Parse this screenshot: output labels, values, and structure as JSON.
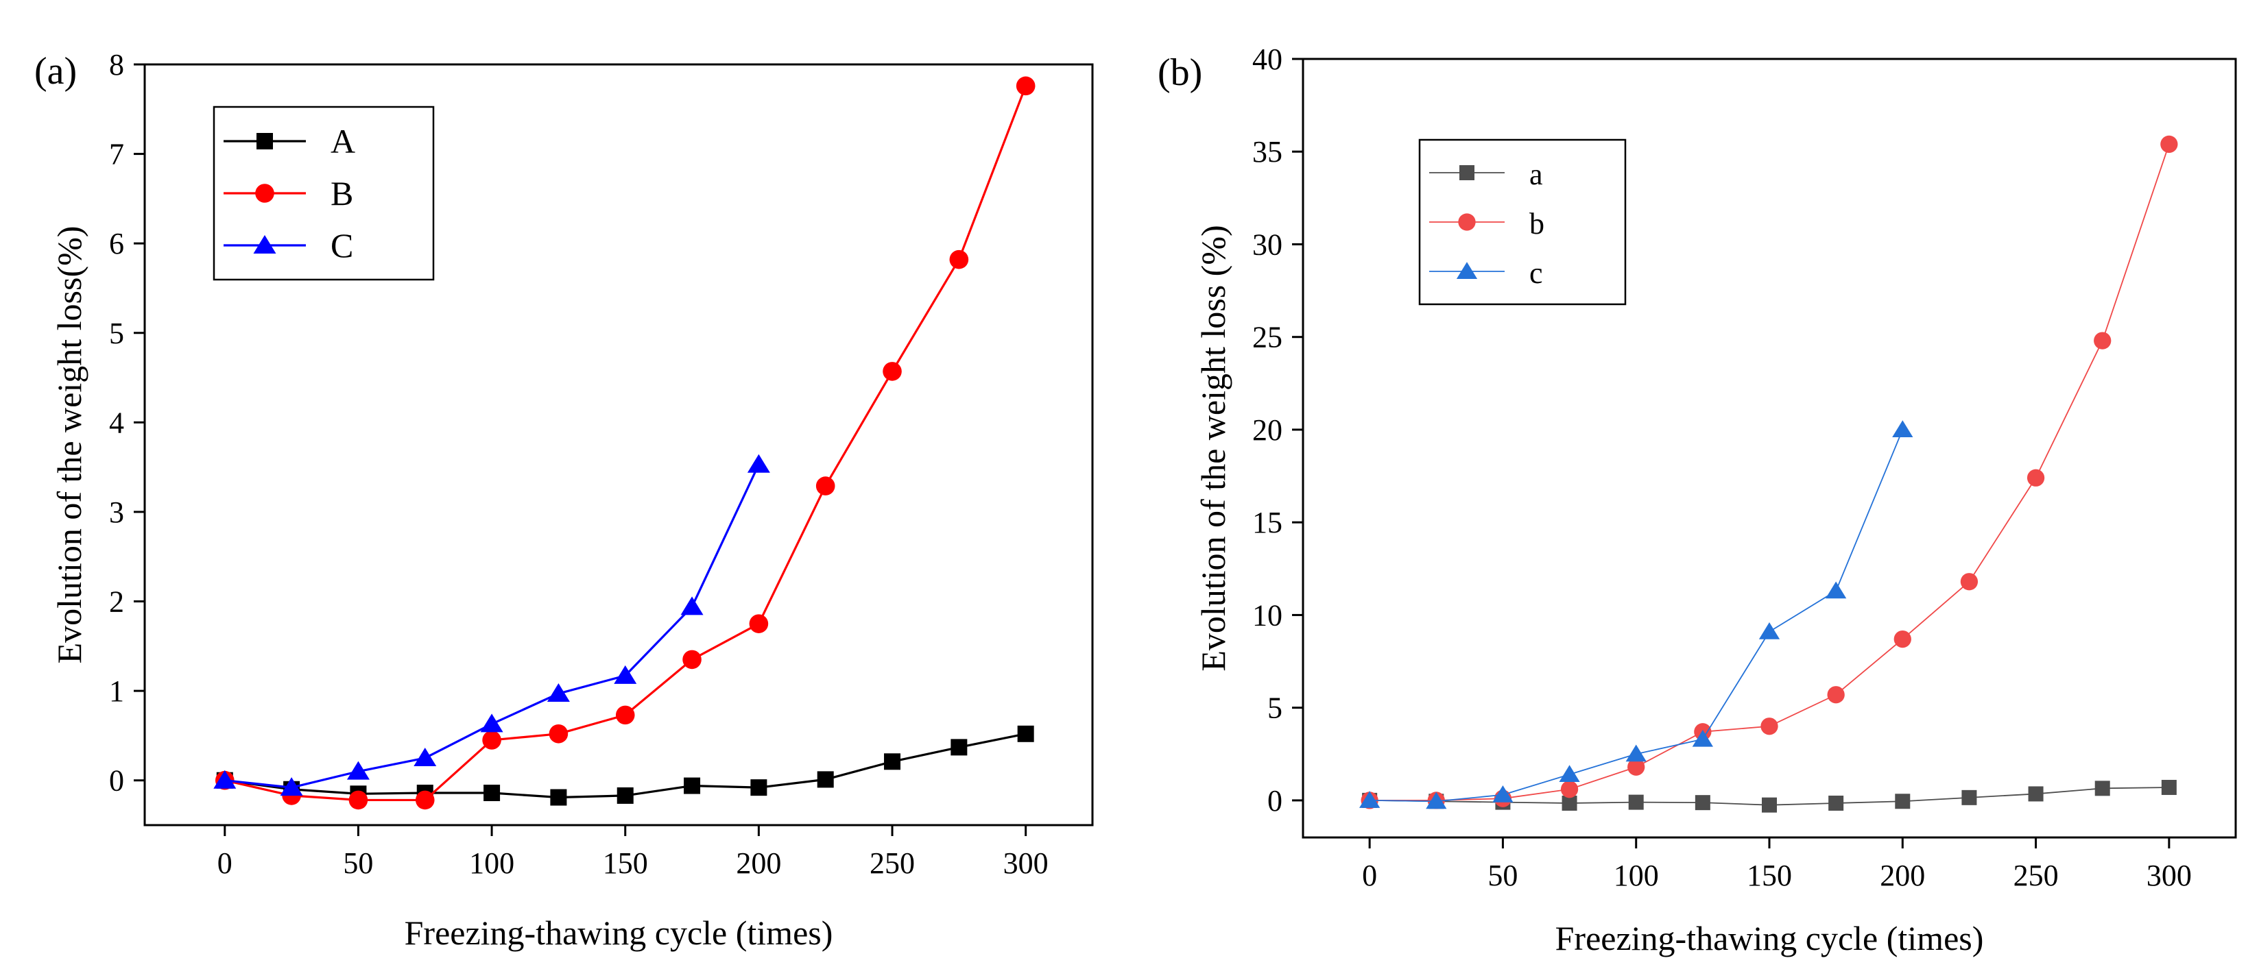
{
  "chart_data": [
    {
      "panel_label": "(a)",
      "type": "line",
      "xlabel": "Freezing-thawing cycle (times)",
      "ylabel": "Evolution of the weight loss(%)",
      "xlim": [
        -30,
        325
      ],
      "ylim": [
        -0.5,
        8
      ],
      "xticks": [
        0,
        50,
        100,
        150,
        200,
        250,
        300
      ],
      "yticks": [
        0,
        1,
        2,
        3,
        4,
        5,
        6,
        7,
        8
      ],
      "legend_position": "top-left",
      "series": [
        {
          "name": "A",
          "color": "#000000",
          "marker": "square",
          "x": [
            0,
            25,
            50,
            75,
            100,
            125,
            150,
            175,
            200,
            225,
            250,
            275,
            300
          ],
          "values": [
            0,
            -0.1,
            -0.15,
            -0.14,
            -0.14,
            -0.19,
            -0.17,
            -0.06,
            -0.08,
            0.01,
            0.21,
            0.37,
            0.52
          ]
        },
        {
          "name": "B",
          "color": "#ff0000",
          "marker": "circle",
          "x": [
            0,
            25,
            50,
            75,
            100,
            125,
            150,
            175,
            200,
            225,
            250,
            275,
            300
          ],
          "values": [
            0,
            -0.17,
            -0.22,
            -0.22,
            0.45,
            0.52,
            0.73,
            1.35,
            1.75,
            3.29,
            4.57,
            5.82,
            7.76
          ]
        },
        {
          "name": "C",
          "color": "#0000ff",
          "marker": "triangle",
          "x": [
            0,
            25,
            50,
            75,
            100,
            125,
            150,
            175,
            200
          ],
          "values": [
            0,
            -0.08,
            0.1,
            0.25,
            0.63,
            0.97,
            1.17,
            1.94,
            3.53
          ]
        }
      ]
    },
    {
      "panel_label": "(b)",
      "type": "line",
      "xlabel": "Freezing-thawing cycle (times)",
      "ylabel": "Evolution of the weight loss (%)",
      "xlim": [
        -25,
        325
      ],
      "ylim": [
        -2,
        40
      ],
      "xticks": [
        0,
        50,
        100,
        150,
        200,
        250,
        300
      ],
      "yticks": [
        0,
        5,
        10,
        15,
        20,
        25,
        30,
        35,
        40
      ],
      "legend_position": "top-left",
      "series": [
        {
          "name": "a",
          "color": "#4d4d4d",
          "marker": "square",
          "x": [
            0,
            25,
            50,
            75,
            100,
            125,
            150,
            175,
            200,
            225,
            250,
            275,
            300
          ],
          "values": [
            0,
            -0.05,
            -0.1,
            -0.15,
            -0.1,
            -0.12,
            -0.25,
            -0.15,
            -0.05,
            0.15,
            0.35,
            0.65,
            0.7
          ]
        },
        {
          "name": "b",
          "color": "#f04848",
          "marker": "circle",
          "x": [
            0,
            25,
            50,
            75,
            100,
            125,
            150,
            175,
            200,
            225,
            250,
            275,
            300
          ],
          "values": [
            0,
            0,
            0.1,
            0.6,
            1.8,
            3.7,
            4.0,
            5.7,
            8.7,
            11.8,
            17.4,
            24.8,
            35.4
          ]
        },
        {
          "name": "c",
          "color": "#2472d8",
          "marker": "triangle",
          "x": [
            0,
            25,
            50,
            75,
            100,
            125,
            150,
            175,
            200
          ],
          "values": [
            0,
            -0.05,
            0.3,
            1.4,
            2.5,
            3.3,
            9.1,
            11.3,
            20.0
          ]
        }
      ]
    }
  ]
}
